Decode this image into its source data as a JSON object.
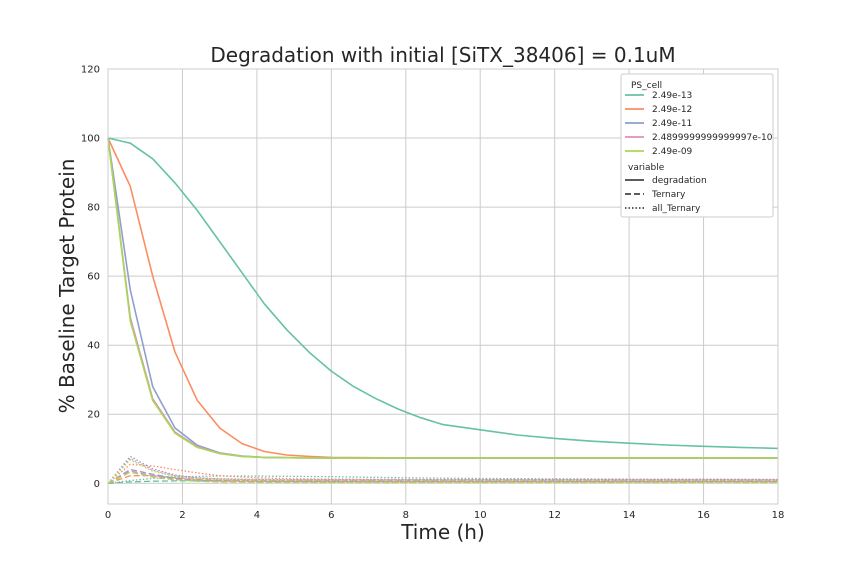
{
  "chart_data": {
    "type": "line",
    "title": "Degradation with initial [SiTX_38406] = 0.1uM",
    "xlabel": "Time (h)",
    "ylabel": "% Baseline Target Protein",
    "xlim": [
      0,
      18
    ],
    "ylim": [
      -6,
      120
    ],
    "x_ticks": [
      0,
      2,
      4,
      6,
      8,
      10,
      12,
      14,
      16,
      18
    ],
    "y_ticks": [
      0,
      20,
      40,
      60,
      80,
      100,
      120
    ],
    "grid": true,
    "legend": {
      "placement": "top-right",
      "hue_title": "PS_cell",
      "style_title": "variable",
      "hue_entries": [
        {
          "label": "2.49e-13",
          "color": "#66c2a5"
        },
        {
          "label": "2.49e-12",
          "color": "#fc8d62"
        },
        {
          "label": "2.49e-11",
          "color": "#8da0cb"
        },
        {
          "label": "2.4899999999999997e-10",
          "color": "#e78ac3"
        },
        {
          "label": "2.49e-09",
          "color": "#a6d854"
        }
      ],
      "style_entries": [
        {
          "label": "degradation",
          "dash": "solid"
        },
        {
          "label": "Ternary",
          "dash": "dashed"
        },
        {
          "label": "all_Ternary",
          "dash": "dotted"
        }
      ]
    },
    "series": [
      {
        "hue": "2.49e-13",
        "style": "degradation",
        "color": "#66c2a5",
        "x": [
          0,
          0.6,
          1.2,
          1.8,
          2.4,
          3.0,
          3.6,
          4.2,
          4.8,
          5.4,
          6.0,
          6.6,
          7.2,
          7.8,
          8.4,
          9.0,
          10,
          11,
          12,
          13,
          14,
          15,
          16,
          17,
          18
        ],
        "y": [
          100,
          98.5,
          94,
          87,
          79,
          70,
          61,
          52,
          44.5,
          38,
          32.5,
          28,
          24.5,
          21.5,
          19,
          17,
          15.5,
          14,
          13,
          12.2,
          11.6,
          11.1,
          10.7,
          10.4,
          10.1
        ]
      },
      {
        "hue": "2.49e-12",
        "style": "degradation",
        "color": "#fc8d62",
        "x": [
          0,
          0.6,
          1.2,
          1.8,
          2.4,
          3.0,
          3.6,
          4.2,
          4.8,
          5.4,
          6.0,
          7,
          8,
          10,
          12,
          14,
          16,
          18
        ],
        "y": [
          100,
          86,
          60,
          38,
          24,
          16,
          11.5,
          9.2,
          8.2,
          7.8,
          7.5,
          7.4,
          7.3,
          7.3,
          7.3,
          7.3,
          7.3,
          7.3
        ]
      },
      {
        "hue": "2.49e-11",
        "style": "degradation",
        "color": "#8da0cb",
        "x": [
          0,
          0.6,
          1.2,
          1.8,
          2.4,
          3.0,
          3.6,
          4.2,
          4.8,
          6,
          8,
          10,
          12,
          14,
          16,
          18
        ],
        "y": [
          100,
          56,
          28,
          16,
          11,
          8.8,
          7.9,
          7.5,
          7.4,
          7.3,
          7.3,
          7.3,
          7.3,
          7.3,
          7.3,
          7.3
        ]
      },
      {
        "hue": "2.4899999999999997e-10",
        "style": "degradation",
        "color": "#e78ac3",
        "x": [
          0,
          0.6,
          1.2,
          1.8,
          2.4,
          3.0,
          3.6,
          4.2,
          4.8,
          6,
          8,
          10,
          12,
          14,
          16,
          18
        ],
        "y": [
          100,
          48,
          24.5,
          14.8,
          10.6,
          8.7,
          7.8,
          7.5,
          7.4,
          7.3,
          7.3,
          7.3,
          7.3,
          7.3,
          7.3,
          7.3
        ]
      },
      {
        "hue": "2.49e-09",
        "style": "degradation",
        "color": "#a6d854",
        "x": [
          0,
          0.6,
          1.2,
          1.8,
          2.4,
          3.0,
          3.6,
          4.2,
          4.8,
          6,
          8,
          10,
          12,
          14,
          16,
          18
        ],
        "y": [
          100,
          47,
          24,
          14.5,
          10.4,
          8.6,
          7.8,
          7.5,
          7.4,
          7.3,
          7.3,
          7.3,
          7.3,
          7.3,
          7.3,
          7.3
        ]
      },
      {
        "hue": "2.49e-13",
        "style": "Ternary",
        "color": "#66c2a5",
        "x": [
          0,
          0.6,
          1.2,
          1.8,
          2.4,
          3,
          4,
          6,
          8,
          10,
          12,
          14,
          16,
          18
        ],
        "y": [
          0,
          0.4,
          0.6,
          0.7,
          0.7,
          0.7,
          0.7,
          0.7,
          0.7,
          0.6,
          0.6,
          0.6,
          0.6,
          0.6
        ]
      },
      {
        "hue": "2.49e-12",
        "style": "Ternary",
        "color": "#fc8d62",
        "x": [
          0,
          0.6,
          1.2,
          1.8,
          2.4,
          3,
          4,
          6,
          8,
          10,
          12,
          14,
          16,
          18
        ],
        "y": [
          0,
          2.2,
          2.2,
          1.6,
          1.1,
          0.8,
          0.6,
          0.5,
          0.5,
          0.5,
          0.5,
          0.5,
          0.5,
          0.5
        ]
      },
      {
        "hue": "2.49e-11",
        "style": "Ternary",
        "color": "#8da0cb",
        "x": [
          0,
          0.6,
          1.2,
          1.8,
          2.4,
          3,
          4,
          6,
          8,
          10,
          12,
          14,
          16,
          18
        ],
        "y": [
          0,
          4,
          2.6,
          1.5,
          0.9,
          0.6,
          0.5,
          0.4,
          0.4,
          0.4,
          0.4,
          0.4,
          0.4,
          0.4
        ]
      },
      {
        "hue": "2.4899999999999997e-10",
        "style": "Ternary",
        "color": "#e78ac3",
        "x": [
          0,
          0.6,
          1.2,
          1.8,
          2.4,
          3,
          4,
          6,
          8,
          10,
          12,
          14,
          16,
          18
        ],
        "y": [
          0,
          3.6,
          2.2,
          1.2,
          0.7,
          0.5,
          0.4,
          0.3,
          0.3,
          0.3,
          0.3,
          0.3,
          0.3,
          0.3
        ]
      },
      {
        "hue": "2.49e-09",
        "style": "Ternary",
        "color": "#a6d854",
        "x": [
          0,
          0.6,
          1.2,
          1.8,
          2.4,
          3,
          4,
          6,
          8,
          10,
          12,
          14,
          16,
          18
        ],
        "y": [
          0,
          3.2,
          1.8,
          1.0,
          0.6,
          0.4,
          0.3,
          0.2,
          0.2,
          0.2,
          0.2,
          0.2,
          0.2,
          0.2
        ]
      },
      {
        "hue": "2.49e-13",
        "style": "all_Ternary",
        "color": "#66c2a5",
        "x": [
          0,
          0.6,
          1.2,
          1.8,
          2.4,
          3,
          4,
          5,
          6,
          8,
          10,
          12,
          14,
          16,
          18
        ],
        "y": [
          0,
          0.8,
          1.4,
          1.8,
          2.0,
          2.1,
          2.1,
          2.0,
          1.9,
          1.6,
          1.4,
          1.3,
          1.2,
          1.2,
          1.1
        ]
      },
      {
        "hue": "2.49e-12",
        "style": "all_Ternary",
        "color": "#fc8d62",
        "x": [
          0,
          0.6,
          1.2,
          1.8,
          2.4,
          3,
          4,
          5,
          6,
          8,
          10,
          12,
          14,
          16,
          18
        ],
        "y": [
          0,
          5.5,
          5.0,
          4.0,
          3.0,
          2.2,
          1.6,
          1.3,
          1.2,
          1.1,
          1.1,
          1.1,
          1.1,
          1.1,
          1.1
        ]
      },
      {
        "hue": "2.49e-11",
        "style": "all_Ternary",
        "color": "#8da0cb",
        "x": [
          0,
          0.6,
          1.2,
          1.8,
          2.4,
          3,
          4,
          5,
          6,
          8,
          10,
          12,
          14,
          16,
          18
        ],
        "y": [
          0,
          7.8,
          4.2,
          2.4,
          1.6,
          1.3,
          1.1,
          1.0,
          1.0,
          1.0,
          1.0,
          1.0,
          1.0,
          1.0,
          1.0
        ]
      },
      {
        "hue": "2.4899999999999997e-10",
        "style": "all_Ternary",
        "color": "#e78ac3",
        "x": [
          0,
          0.6,
          1.2,
          1.8,
          2.4,
          3,
          4,
          5,
          6,
          8,
          10,
          12,
          14,
          16,
          18
        ],
        "y": [
          0,
          7.2,
          3.8,
          2.2,
          1.5,
          1.2,
          1.0,
          0.9,
          0.9,
          0.9,
          0.9,
          0.9,
          0.9,
          0.9,
          0.9
        ]
      },
      {
        "hue": "2.49e-09",
        "style": "all_Ternary",
        "color": "#a6d854",
        "x": [
          0,
          0.6,
          1.2,
          1.8,
          2.4,
          3,
          4,
          5,
          6,
          8,
          10,
          12,
          14,
          16,
          18
        ],
        "y": [
          0,
          6.8,
          3.5,
          2.0,
          1.4,
          1.1,
          0.9,
          0.8,
          0.8,
          0.8,
          0.8,
          0.8,
          0.8,
          0.8,
          0.8
        ]
      }
    ]
  }
}
